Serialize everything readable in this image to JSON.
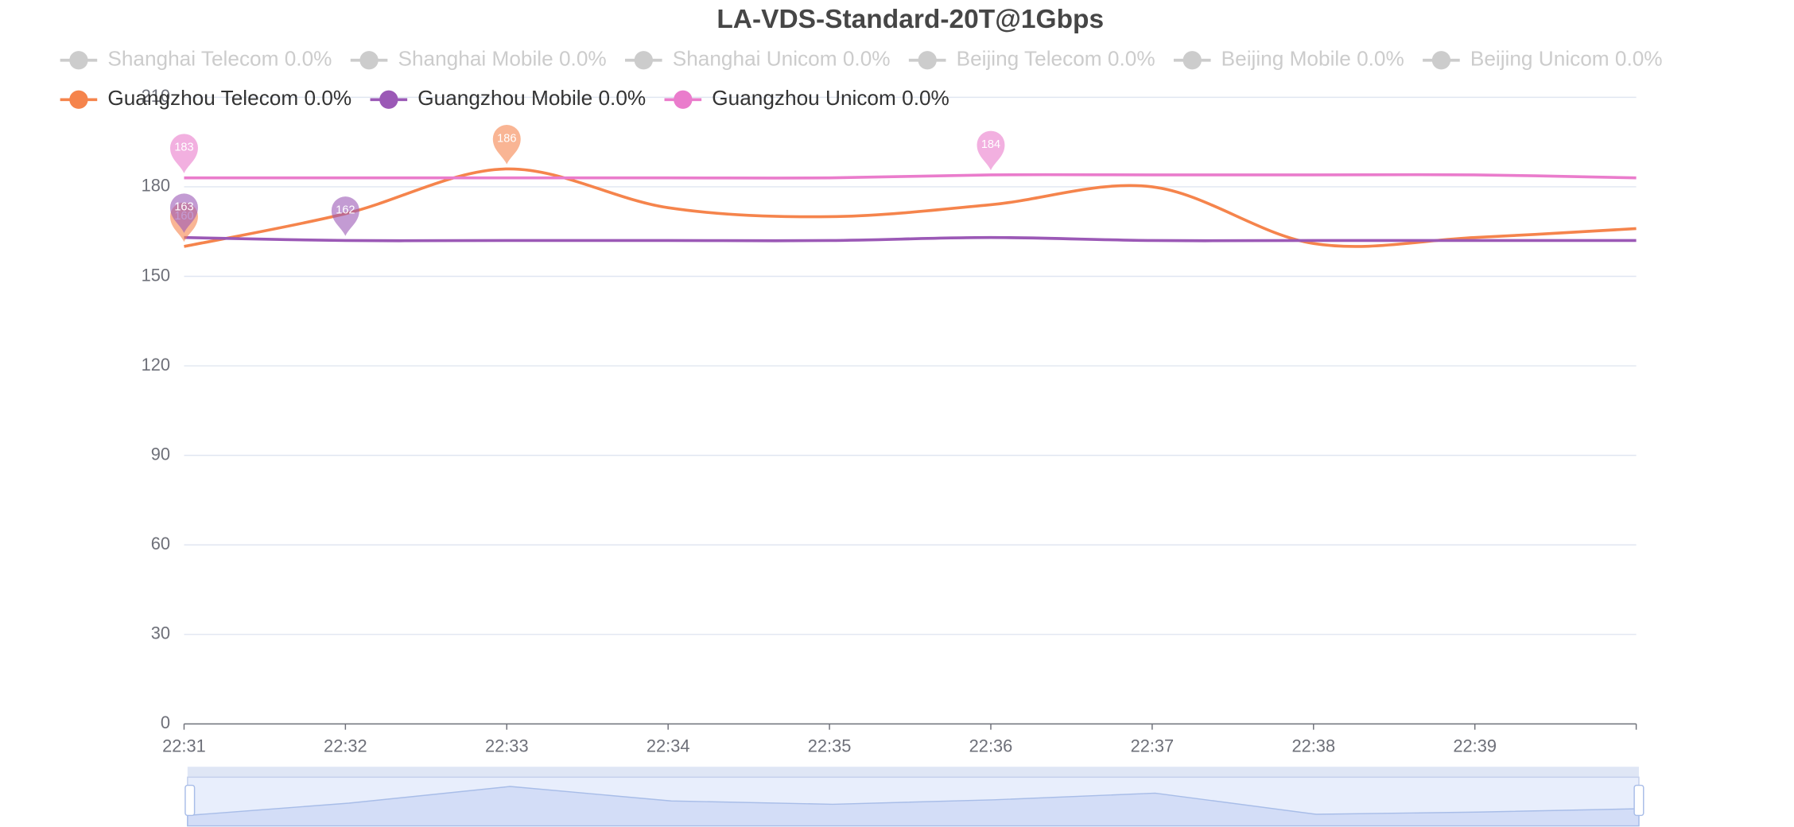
{
  "chart_data": {
    "type": "line",
    "title": "LA-VDS-Standard-20T@1Gbps",
    "categories": [
      "22:31",
      "22:32",
      "22:33",
      "22:34",
      "22:35",
      "22:36",
      "22:37",
      "22:38",
      "22:39",
      null
    ],
    "inactive_legend": [
      "Shanghai Telecom 0.0%",
      "Shanghai Mobile 0.0%",
      "Shanghai Unicom 0.0%",
      "Beijing Telecom 0.0%",
      "Beijing Mobile 0.0%",
      "Beijing Unicom 0.0%"
    ],
    "inactive_color": "#cccccc",
    "series": [
      {
        "name": "Guangzhou Telecom 0.0%",
        "color": "#f5844c",
        "values": [
          160,
          171,
          186,
          173,
          170,
          174,
          180,
          161,
          163,
          166
        ],
        "mark_points": [
          {
            "at": "22:33",
            "value": 186
          },
          {
            "at": "22:31",
            "value": 160
          }
        ]
      },
      {
        "name": "Guangzhou Mobile 0.0%",
        "color": "#9b59b6",
        "values": [
          163,
          162,
          162,
          162,
          162,
          163,
          162,
          162,
          162,
          162
        ],
        "mark_points": [
          {
            "at": "22:31",
            "value": 163
          },
          {
            "at": "22:32",
            "value": 162
          }
        ]
      },
      {
        "name": "Guangzhou Unicom 0.0%",
        "color": "#ea7ccc",
        "values": [
          183,
          183,
          183,
          183,
          183,
          184,
          184,
          184,
          184,
          183
        ],
        "mark_points": [
          {
            "at": "22:36",
            "value": 184
          },
          {
            "at": "22:31",
            "value": 183
          }
        ]
      }
    ],
    "ylim": [
      0,
      210
    ],
    "yticks": [
      0,
      30,
      60,
      90,
      120,
      150,
      180,
      210
    ],
    "grid": true,
    "smooth": true,
    "data_zoom": true
  }
}
